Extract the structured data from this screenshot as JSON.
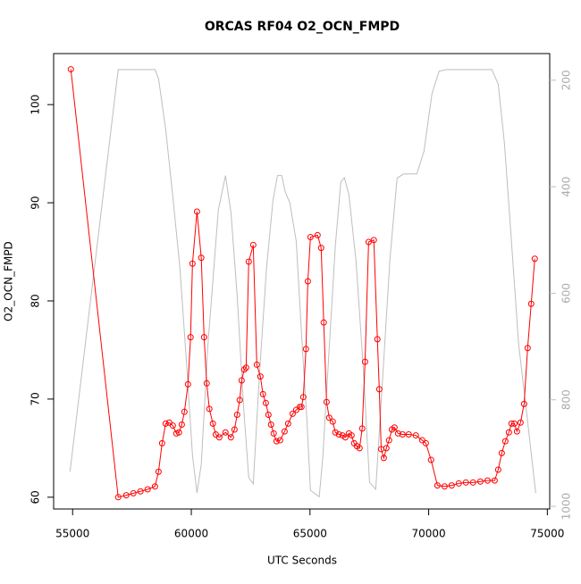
{
  "chart_data": {
    "type": "line",
    "title": "ORCAS RF04 O2_OCN_FMPD",
    "x_label": "UTC Seconds",
    "y_label": "O2_OCN_FMPD",
    "xlim": [
      54200,
      75100
    ],
    "ylim": [
      58.8,
      105.2
    ],
    "y2lim": [
      1005,
      150
    ],
    "xticks": [
      55000,
      60000,
      65000,
      70000,
      75000
    ],
    "yticks": [
      60,
      70,
      80,
      90,
      100
    ],
    "y2ticks": [
      200,
      400,
      600,
      800,
      1000
    ],
    "series": [
      {
        "color": "#ff0000",
        "markers": true,
        "x": [
          54925,
          56920,
          57260,
          57560,
          57860,
          58160,
          58470,
          58620,
          58770,
          58920,
          59070,
          59220,
          59370,
          59480,
          59600,
          59710,
          59860,
          59970,
          60050,
          60240,
          60420,
          60540,
          60650,
          60760,
          60910,
          61030,
          61180,
          61440,
          61670,
          61820,
          61930,
          62040,
          62120,
          62230,
          62310,
          62420,
          62610,
          62760,
          62910,
          63020,
          63140,
          63250,
          63360,
          63470,
          63590,
          63740,
          63930,
          64080,
          64270,
          64420,
          64570,
          64640,
          64720,
          64830,
          64910,
          65020,
          65320,
          65470,
          65580,
          65700,
          65810,
          65960,
          66070,
          66220,
          66370,
          66490,
          66640,
          66750,
          66860,
          66980,
          67090,
          67200,
          67320,
          67470,
          67690,
          67840,
          67920,
          68000,
          68110,
          68220,
          68330,
          68450,
          68560,
          68710,
          68900,
          69160,
          69460,
          69730,
          69880,
          70100,
          70370,
          70670,
          70970,
          71270,
          71570,
          71870,
          72180,
          72480,
          72780,
          72930,
          73080,
          73230,
          73380,
          73490,
          73610,
          73720,
          73870,
          74020,
          74170,
          74320,
          74470
        ],
        "values": [
          103.6,
          60.0,
          60.2,
          60.4,
          60.6,
          60.8,
          61.1,
          62.6,
          65.5,
          67.5,
          67.6,
          67.3,
          66.5,
          66.6,
          67.4,
          68.7,
          71.5,
          76.3,
          83.8,
          89.1,
          84.4,
          76.3,
          71.6,
          69.0,
          67.5,
          66.4,
          66.1,
          66.6,
          66.1,
          66.9,
          68.4,
          69.9,
          71.9,
          73.0,
          73.2,
          84.0,
          85.7,
          73.5,
          72.3,
          70.5,
          69.6,
          68.4,
          67.4,
          66.5,
          65.7,
          65.8,
          66.7,
          67.5,
          68.5,
          68.9,
          69.2,
          69.2,
          70.2,
          75.1,
          82.0,
          86.5,
          86.7,
          85.4,
          77.8,
          69.7,
          68.1,
          67.7,
          66.6,
          66.4,
          66.3,
          66.1,
          66.5,
          66.3,
          65.5,
          65.2,
          65.0,
          67.0,
          73.8,
          86.0,
          86.2,
          76.1,
          71.0,
          64.9,
          64.0,
          65.0,
          65.8,
          66.9,
          67.1,
          66.5,
          66.4,
          66.4,
          66.3,
          65.8,
          65.5,
          63.8,
          61.2,
          61.1,
          61.2,
          61.4,
          61.5,
          61.5,
          61.6,
          61.7,
          61.7,
          62.8,
          64.5,
          65.7,
          66.6,
          67.5,
          67.5,
          66.7,
          67.6,
          69.5,
          75.2,
          79.7,
          84.3
        ]
      },
      {
        "color": "#bebebe",
        "axis": "y2",
        "markers": false,
        "x": [
          54890,
          56920,
          58470,
          58620,
          58920,
          59220,
          59520,
          59820,
          60050,
          60240,
          60420,
          60690,
          61140,
          61440,
          61670,
          61930,
          62200,
          62420,
          62610,
          62870,
          63170,
          63440,
          63630,
          63810,
          63960,
          64150,
          64420,
          64680,
          64870,
          65020,
          65390,
          65540,
          65810,
          66070,
          66300,
          66450,
          66640,
          66940,
          67240,
          67510,
          67770,
          68070,
          68370,
          68670,
          68940,
          69500,
          69800,
          70140,
          70440,
          70780,
          72660,
          72930,
          73190,
          73460,
          73790,
          74170,
          74510
        ],
        "values": [
          935,
          180,
          180,
          197,
          292,
          418,
          552,
          745,
          904,
          975,
          921,
          703,
          443,
          379,
          448,
          603,
          812,
          946,
          958,
          753,
          552,
          426,
          379,
          379,
          410,
          430,
          502,
          703,
          837,
          970,
          982,
          908,
          703,
          510,
          391,
          383,
          415,
          539,
          737,
          955,
          968,
          753,
          535,
          384,
          376,
          376,
          334,
          225,
          183,
          180,
          180,
          207,
          317,
          485,
          695,
          841,
          975
        ]
      }
    ]
  }
}
